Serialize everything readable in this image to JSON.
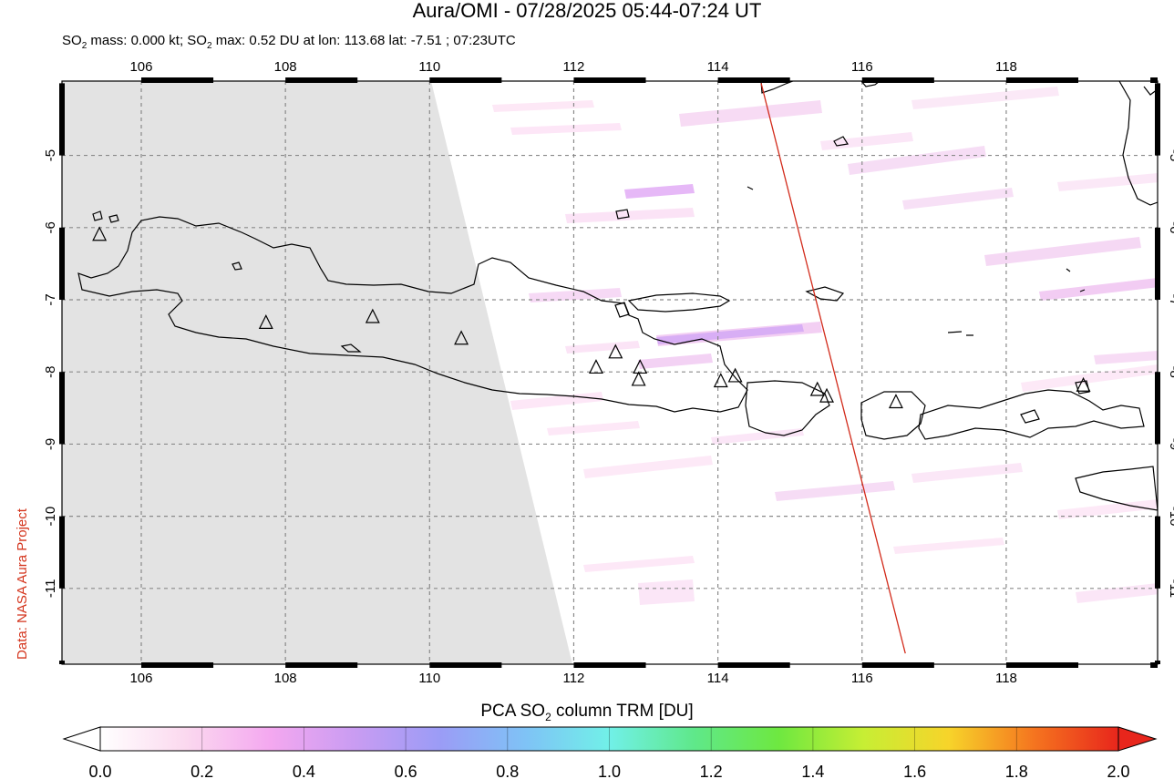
{
  "title": "Aura/OMI - 07/28/2025 05:44-07:24 UT",
  "subtitle": {
    "prefix": "SO",
    "sub": "2",
    "mid1": " mass: 0.000 kt; SO",
    "sub2": "2",
    "rest": " max: 0.52 DU at lon: 113.68 lat: -7.51 ; 07:23UTC"
  },
  "credit": "Data: NASA Aura Project",
  "map": {
    "lon_range": [
      104.9,
      120.1
    ],
    "lat_range": [
      -12.05,
      -3.97
    ],
    "lon_ticks": [
      106,
      108,
      110,
      112,
      114,
      116,
      118
    ],
    "lat_ticks": [
      -5,
      -6,
      -7,
      -8,
      -9,
      -10,
      -11
    ],
    "grid": "dashed",
    "no_data_color": "#e3e3e3",
    "coast_color": "#000000",
    "track_color": "#d22a1a",
    "track": [
      [
        114.6,
        -4.0
      ],
      [
        116.6,
        -11.9
      ]
    ],
    "volcanoes": [
      [
        105.42,
        -6.1
      ],
      [
        107.73,
        -7.32
      ],
      [
        109.21,
        -7.24
      ],
      [
        110.44,
        -7.54
      ],
      [
        112.31,
        -7.94
      ],
      [
        112.58,
        -7.73
      ],
      [
        112.92,
        -7.94
      ],
      [
        112.9,
        -8.11
      ],
      [
        114.04,
        -8.13
      ],
      [
        114.24,
        -8.06
      ],
      [
        115.38,
        -8.25
      ],
      [
        115.51,
        -8.34
      ],
      [
        116.47,
        -8.42
      ],
      [
        119.07,
        -8.19
      ]
    ]
  },
  "colorbar": {
    "title_prefix": "PCA SO",
    "title_sub": "2",
    "title_rest": " column TRM [DU]",
    "ticks": [
      "0.0",
      "0.2",
      "0.4",
      "0.6",
      "0.8",
      "1.0",
      "1.2",
      "1.4",
      "1.6",
      "1.8",
      "2.0"
    ],
    "colors": [
      "#ffffff",
      "#fbd9ef",
      "#f4a8f0",
      "#c99cf2",
      "#9b9cf6",
      "#7fc2f6",
      "#71f0e8",
      "#5fe88a",
      "#6ee840",
      "#c7ee34",
      "#f7d42a",
      "#f5751f",
      "#e8261c"
    ]
  }
}
